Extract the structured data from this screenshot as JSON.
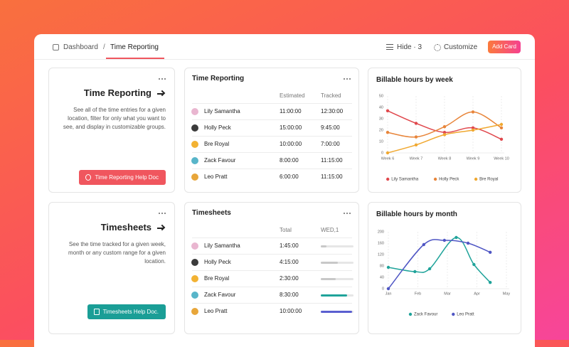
{
  "header": {
    "breadcrumb": [
      "Dashboard",
      "Time Reporting"
    ],
    "separator": "/",
    "hide": "Hide · 3",
    "customize": "Customize",
    "add_card": "Add Card"
  },
  "intro_cards": [
    {
      "title": "Time Reporting",
      "description": "See all of the time entries for a given location, filter for only what you want to see, and display in customizable groups.",
      "button": "Time Reporting Help Doc"
    },
    {
      "title": "Timesheets",
      "description": "See the time tracked for a given week, month or any custom range for a given location.",
      "button": "Timesheets Help Doc."
    }
  ],
  "time_reporting": {
    "title": "Time Reporting",
    "columns": [
      "Estimated",
      "Tracked"
    ],
    "rows": [
      [
        "Lily Samantha",
        "11:00:00",
        "12:30:00"
      ],
      [
        "Holly Peck",
        "15:00:00",
        "9:45:00"
      ],
      [
        "Bre Royal",
        "10:00:00",
        "7:00:00"
      ],
      [
        "Zack Favour",
        "8:00:00",
        "11:15:00"
      ],
      [
        "Leo Pratt",
        "6:00:00",
        "11:15:00"
      ]
    ]
  },
  "timesheets": {
    "title": "Timesheets",
    "columns": [
      "Total",
      "WED,1"
    ],
    "rows": [
      [
        "Lily Samantha",
        "1:45:00"
      ],
      [
        "Holly Peck",
        "4:15:00"
      ],
      [
        "Bre Royal",
        "2:30:00"
      ],
      [
        "Zack Favour",
        "8:30:00"
      ],
      [
        "Leo Pratt",
        "10:00:00"
      ]
    ],
    "progress": [
      17,
      52,
      45,
      80,
      95
    ],
    "progress_colors": [
      "#c8c8c8",
      "#c8c8c8",
      "#c8c8c8",
      "#1fa39a",
      "#5a5fd0"
    ]
  },
  "chart_data": [
    {
      "type": "line",
      "title": "Billable hours by week",
      "categories": [
        "Week 6",
        "Week 7",
        "Week 8",
        "Week 9",
        "Week 10"
      ],
      "series": [
        {
          "name": "Lily Samantha",
          "color": "#e0474c",
          "values": [
            37,
            26,
            18,
            22,
            12
          ]
        },
        {
          "name": "Holly Peck",
          "color": "#e8853a",
          "values": [
            18,
            14,
            23,
            36,
            22
          ]
        },
        {
          "name": "Bre Royal",
          "color": "#f0a830",
          "values": [
            0,
            7,
            16,
            20,
            25
          ]
        }
      ],
      "ylim": [
        0,
        50
      ],
      "yticks": [
        0,
        10,
        20,
        30,
        40,
        50
      ],
      "grid": "x"
    },
    {
      "type": "line",
      "title": "Billable hours by month",
      "xlim": [
        0,
        4
      ],
      "xticks": [
        {
          "value": 0,
          "label": "Jan"
        },
        {
          "value": 1,
          "label": "Feb"
        },
        {
          "value": 2,
          "label": "Mar"
        },
        {
          "value": 3,
          "label": "Apr"
        },
        {
          "value": 4,
          "label": "May"
        }
      ],
      "series": [
        {
          "name": "Zack Favour",
          "color": "#1fa39a",
          "x": [
            0,
            0.9,
            1.4,
            2.3,
            2.9,
            3.45
          ],
          "values": [
            75,
            60,
            70,
            180,
            85,
            22
          ]
        },
        {
          "name": "Leo Pratt",
          "color": "#4f56c4",
          "x": [
            0,
            1.2,
            1.9,
            2.7,
            3.45
          ],
          "values": [
            0,
            155,
            170,
            160,
            128
          ]
        }
      ],
      "ylim": [
        0,
        200
      ],
      "yticks": [
        0,
        40,
        80,
        120,
        160,
        200
      ],
      "grid": "x"
    }
  ]
}
